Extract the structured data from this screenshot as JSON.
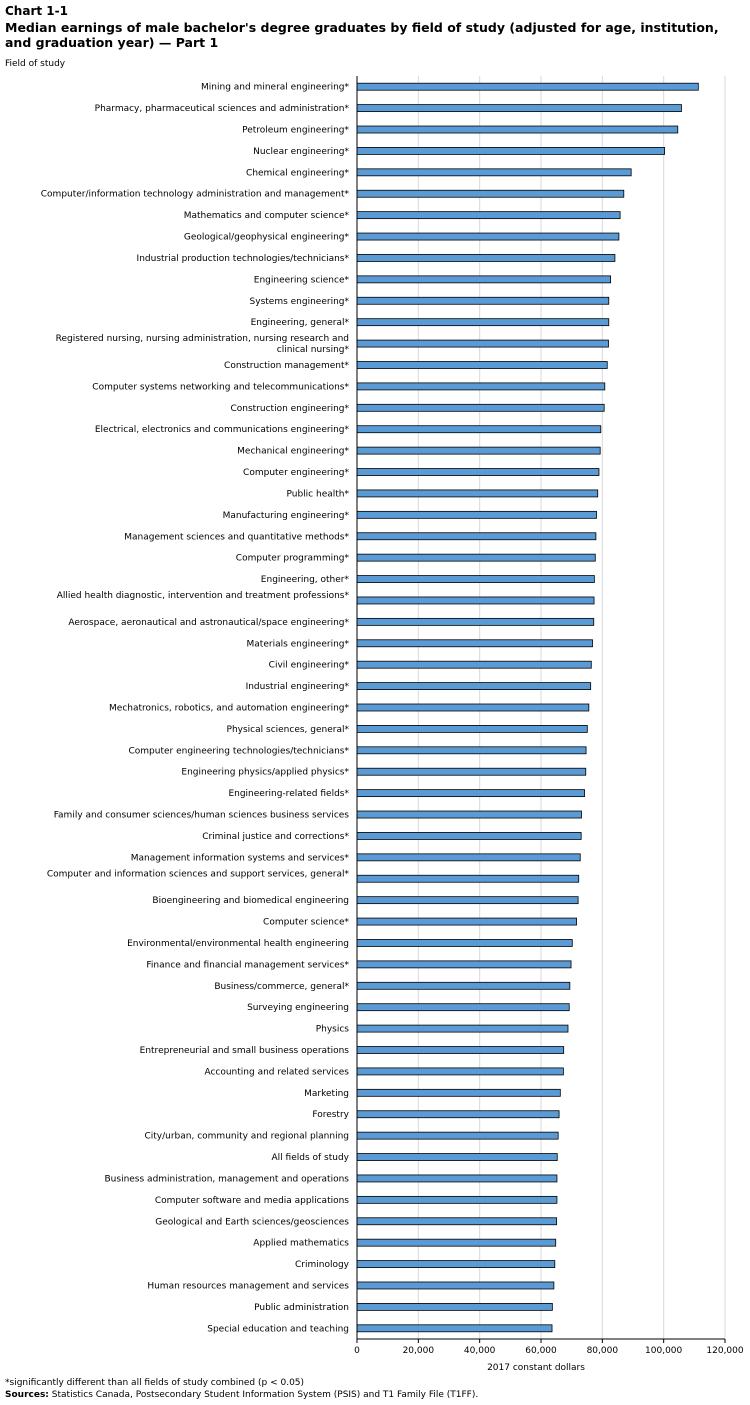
{
  "header": {
    "chart_number": "Chart 1-1",
    "title": "Median earnings of male bachelor's degree graduates by field of study (adjusted for age, institution, and graduation year) — Part 1"
  },
  "footer": {
    "footnote": "*significantly different than all fields of study combined (p < 0.05)",
    "sources_label": "Sources:",
    "sources_text": "Statistics Canada, Postsecondary Student Information System (PSIS) and T1 Family File (T1FF)."
  },
  "colors": {
    "bar": "#5b9bd5",
    "bar_stroke": "#000000",
    "grid": "#d9d9d9",
    "axis": "#000000"
  },
  "chart_data": {
    "type": "bar",
    "orientation": "horizontal",
    "title": "Median earnings of male bachelor's degree graduates by field of study (adjusted for age, institution, and graduation year) — Part 1",
    "ylabel": "Field of study",
    "xlabel": "2017 constant dollars",
    "xlim": [
      0,
      120000
    ],
    "xticks": [
      0,
      20000,
      40000,
      60000,
      80000,
      100000,
      120000
    ],
    "xtick_labels": [
      "0",
      "20,000",
      "40,000",
      "60,000",
      "80,000",
      "100,000",
      "120,000"
    ],
    "grid": true,
    "categories": [
      "Mining and mineral engineering*",
      "Pharmacy, pharmaceutical sciences and administration*",
      "Petroleum engineering*",
      "Nuclear engineering*",
      "Chemical engineering*",
      "Computer/information technology administration and management*",
      "Mathematics and computer science*",
      "Geological/geophysical engineering*",
      "Industrial production technologies/technicians*",
      "Engineering science*",
      "Systems engineering*",
      "Engineering, general*",
      "Registered nursing, nursing administration, nursing research and clinical nursing*",
      "Construction management*",
      "Computer systems networking and telecommunications*",
      "Construction engineering*",
      "Electrical, electronics and communications engineering*",
      "Mechanical engineering*",
      "Computer engineering*",
      "Public health*",
      "Manufacturing engineering*",
      "Management sciences and quantitative methods*",
      "Computer programming*",
      "Engineering, other*",
      "Allied health diagnostic, intervention and treatment professions*",
      "Aerospace, aeronautical and astronautical/space engineering*",
      "Materials engineering*",
      "Civil engineering*",
      "Industrial engineering*",
      "Mechatronics, robotics, and automation engineering*",
      "Physical sciences, general*",
      "Computer engineering technologies/technicians*",
      "Engineering physics/applied physics*",
      "Engineering-related fields*",
      "Family and consumer sciences/human sciences business services",
      "Criminal justice and corrections*",
      "Management information systems and services*",
      "Computer and information sciences and support services, general*",
      "Bioengineering and biomedical engineering",
      "Computer science*",
      "Environmental/environmental health engineering",
      "Finance and financial management services*",
      "Business/commerce, general*",
      "Surveying engineering",
      "Physics",
      "Entrepreneurial and small business operations",
      "Accounting and related services",
      "Marketing",
      "Forestry",
      "City/urban, community and regional planning",
      "All fields of study",
      "Business administration, management and operations",
      "Computer software and media applications",
      "Geological and Earth sciences/geosciences",
      "Applied mathematics",
      "Criminology",
      "Human resources management and services",
      "Public administration",
      "Special education and teaching"
    ],
    "values": [
      111300,
      105800,
      104600,
      100300,
      89400,
      87000,
      85800,
      85400,
      84100,
      82700,
      82100,
      82100,
      82000,
      81600,
      80800,
      80600,
      79500,
      79300,
      78900,
      78500,
      78100,
      77900,
      77700,
      77400,
      77300,
      77200,
      76800,
      76400,
      76200,
      75600,
      75100,
      74700,
      74600,
      74200,
      73200,
      73100,
      72800,
      72300,
      72100,
      71600,
      70200,
      69800,
      69400,
      69200,
      68800,
      67400,
      67300,
      66300,
      65900,
      65600,
      65300,
      65200,
      65200,
      65100,
      64800,
      64500,
      64200,
      63700,
      63600
    ]
  }
}
